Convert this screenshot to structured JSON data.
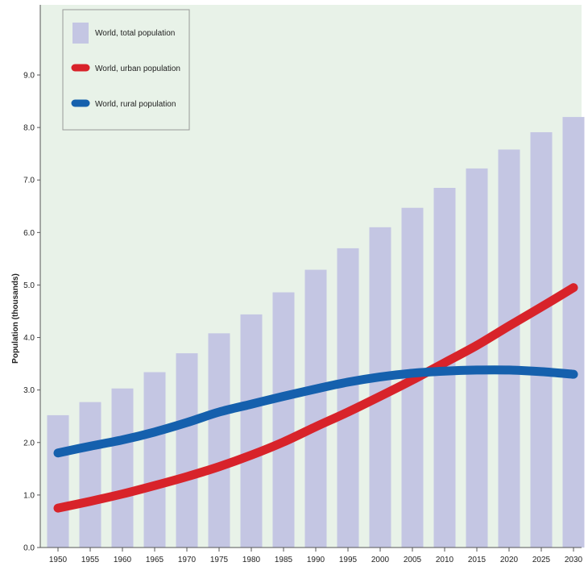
{
  "chart_data": {
    "type": "bar",
    "title": "",
    "xlabel": "",
    "ylabel": "Population (thousands)",
    "ylim": [
      0,
      9.0
    ],
    "y_ticks": [
      "0.0",
      "1.0",
      "2.0",
      "3.0",
      "4.0",
      "5.0",
      "6.0",
      "7.0",
      "8.0",
      "9.0"
    ],
    "categories": [
      "1950",
      "1955",
      "1960",
      "1965",
      "1970",
      "1975",
      "1980",
      "1985",
      "1990",
      "1995",
      "2000",
      "2005",
      "2010",
      "2015",
      "2020",
      "2025",
      "2030"
    ],
    "series": [
      {
        "name": "World, total population",
        "type": "bar",
        "color": "#c4c6e3",
        "values": [
          2.52,
          2.77,
          3.03,
          3.34,
          3.7,
          4.08,
          4.44,
          4.86,
          5.29,
          5.7,
          6.1,
          6.47,
          6.85,
          7.22,
          7.58,
          7.91,
          8.2
        ]
      },
      {
        "name": "World, urban population",
        "type": "line",
        "color": "#d8232a",
        "values": [
          0.75,
          0.88,
          1.02,
          1.18,
          1.35,
          1.54,
          1.76,
          2.01,
          2.3,
          2.58,
          2.88,
          3.19,
          3.52,
          3.85,
          4.22,
          4.58,
          4.95
        ]
      },
      {
        "name": "World, rural population",
        "type": "line",
        "color": "#1560ad",
        "values": [
          1.8,
          1.93,
          2.05,
          2.2,
          2.38,
          2.58,
          2.73,
          2.88,
          3.02,
          3.15,
          3.25,
          3.32,
          3.36,
          3.38,
          3.38,
          3.35,
          3.3
        ]
      }
    ],
    "legend_position": "top-left",
    "grid": false,
    "background_color": "#e8f2e8"
  }
}
